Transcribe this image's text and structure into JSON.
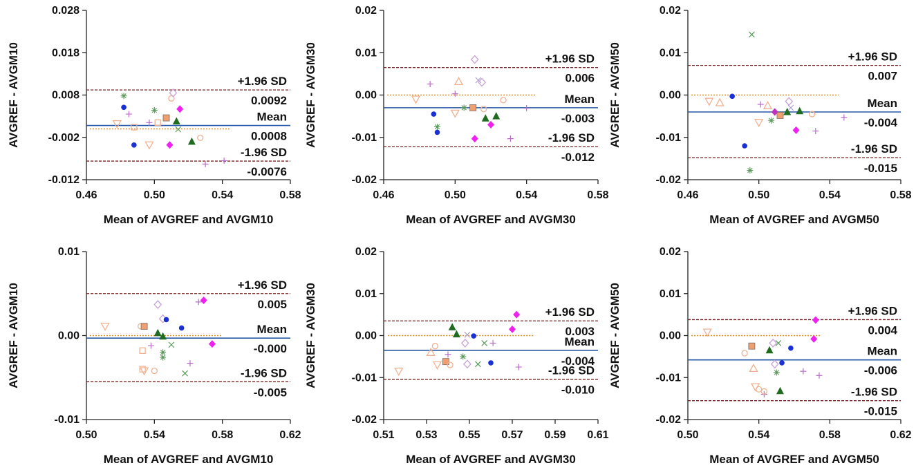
{
  "colors": {
    "mean_line": "#2457a8",
    "sd_line": "#7a2020",
    "zero_line": "#d98a18",
    "axis": "#222222"
  },
  "chart_data": [
    {
      "type": "scatter",
      "title": "",
      "xlabel": "Mean of AVGREF and AVGM10",
      "ylabel": "AVGREF - AVGM10",
      "xlim": [
        0.46,
        0.58
      ],
      "ylim": [
        -0.012,
        0.028
      ],
      "xticks": [
        0.46,
        0.5,
        0.54,
        0.58
      ],
      "yticks": [
        -0.012,
        -0.002,
        0.008,
        0.018,
        0.028
      ],
      "xtick_labels": [
        "0.46",
        "0.50",
        "0.54",
        "0.58"
      ],
      "ytick_labels": [
        "-0.012",
        "-0.002",
        "0.008",
        "0.018",
        "0.028"
      ],
      "mean": 0.0008,
      "upper": 0.0092,
      "lower": -0.0076,
      "zero_line_x": [
        0.462,
        0.545
      ],
      "mean_label": "Mean",
      "mean_value": "0.0008",
      "upper_label": "+1.96 SD",
      "upper_value": "0.0092",
      "lower_label": "-1.96 SD",
      "lower_value": "-0.0076",
      "points": [
        [
          0.482,
          0.0078,
          "star",
          "#5a9a5a"
        ],
        [
          0.482,
          0.0051,
          "circle",
          "#1a2fd4"
        ],
        [
          0.485,
          0.0035,
          "plus",
          "#b86cc8"
        ],
        [
          0.478,
          0.0012,
          "tri-down",
          "#f0b090"
        ],
        [
          0.488,
          0.0004,
          "square",
          "#f0b090"
        ],
        [
          0.488,
          -0.0038,
          "circle",
          "#1a2fd4"
        ],
        [
          0.497,
          -0.0038,
          "tri-down",
          "#f0b090"
        ],
        [
          0.497,
          0.0015,
          "plus",
          "#b86cc8"
        ],
        [
          0.5,
          0.0044,
          "star",
          "#5a9a5a"
        ],
        [
          0.502,
          0.0015,
          "square",
          "#f0b090"
        ],
        [
          0.507,
          0.0026,
          "square-filled",
          "#f0a070"
        ],
        [
          0.509,
          -0.0038,
          "diamond-filled",
          "#f020f0"
        ],
        [
          0.51,
          0.0072,
          "circle-open",
          "#f0b090"
        ],
        [
          0.511,
          0.0085,
          "diamond",
          "#c8a0d8"
        ],
        [
          0.513,
          0.0018,
          "tri-filled",
          "#1f6b1f"
        ],
        [
          0.515,
          0.0047,
          "diamond-filled",
          "#f020f0"
        ],
        [
          0.514,
          -0.0001,
          "x",
          "#5a9a5a"
        ],
        [
          0.522,
          -0.003,
          "tri-filled",
          "#1f6b1f"
        ],
        [
          0.527,
          -0.0021,
          "circle-open",
          "#f0b090"
        ],
        [
          0.53,
          -0.0083,
          "plus",
          "#b86cc8"
        ],
        [
          0.541,
          -0.0075,
          "plus",
          "#b86cc8"
        ]
      ]
    },
    {
      "type": "scatter",
      "title": "",
      "xlabel": "Mean of AVGREF and AVGM30",
      "ylabel": "AVGREF - AVGM30",
      "xlim": [
        0.46,
        0.58
      ],
      "ylim": [
        -0.02,
        0.02
      ],
      "xticks": [
        0.46,
        0.5,
        0.54,
        0.58
      ],
      "yticks": [
        -0.02,
        -0.01,
        0.0,
        0.01,
        0.02
      ],
      "xtick_labels": [
        "0.46",
        "0.50",
        "0.54",
        "0.58"
      ],
      "ytick_labels": [
        "-0.02",
        "-0.01",
        "0.00",
        "0.01",
        "0.02"
      ],
      "mean": -0.003,
      "upper": 0.0065,
      "lower": -0.0122,
      "zero_line_x": [
        0.462,
        0.545
      ],
      "mean_label": "Mean",
      "mean_value": "-0.003",
      "upper_label": "+1.96 SD",
      "upper_value": "0.006",
      "lower_label": "-1.96 SD",
      "lower_value": "-0.012",
      "points": [
        [
          0.478,
          -0.001,
          "tri-down",
          "#f0b090"
        ],
        [
          0.486,
          0.0026,
          "plus",
          "#b86cc8"
        ],
        [
          0.488,
          -0.0045,
          "circle",
          "#1a2fd4"
        ],
        [
          0.49,
          -0.0075,
          "star",
          "#5a9a5a"
        ],
        [
          0.49,
          -0.0088,
          "circle",
          "#1a2fd4"
        ],
        [
          0.5,
          0.0003,
          "plus",
          "#b86cc8"
        ],
        [
          0.502,
          0.0032,
          "tri-up",
          "#f0b090"
        ],
        [
          0.5,
          -0.0043,
          "tri-down",
          "#f0b090"
        ],
        [
          0.505,
          -0.003,
          "star",
          "#5a9a5a"
        ],
        [
          0.51,
          -0.003,
          "square-filled",
          "#f0a070"
        ],
        [
          0.511,
          0.0084,
          "diamond",
          "#c8a0d8"
        ],
        [
          0.511,
          -0.0103,
          "diamond-filled",
          "#f020f0"
        ],
        [
          0.513,
          0.0035,
          "x",
          "#b0a0c8"
        ],
        [
          0.515,
          0.003,
          "diamond",
          "#c8a0d8"
        ],
        [
          0.516,
          -0.0033,
          "circle-open",
          "#f0b090"
        ],
        [
          0.517,
          -0.0055,
          "tri-filled",
          "#1f6b1f"
        ],
        [
          0.52,
          -0.007,
          "diamond-filled",
          "#f020f0"
        ],
        [
          0.523,
          -0.005,
          "tri-filled",
          "#1f6b1f"
        ],
        [
          0.527,
          -0.0012,
          "circle-open",
          "#f0b090"
        ],
        [
          0.531,
          -0.0103,
          "plus",
          "#b86cc8"
        ],
        [
          0.54,
          -0.0031,
          "plus",
          "#b86cc8"
        ]
      ]
    },
    {
      "type": "scatter",
      "title": "",
      "xlabel": "Mean of AVGREF and AVGM50",
      "ylabel": "AVGREF - AVGM50",
      "xlim": [
        0.46,
        0.58
      ],
      "ylim": [
        -0.02,
        0.02
      ],
      "xticks": [
        0.46,
        0.5,
        0.54,
        0.58
      ],
      "yticks": [
        -0.02,
        -0.01,
        0.0,
        0.01,
        0.02
      ],
      "xtick_labels": [
        "0.46",
        "0.50",
        "0.54",
        "0.58"
      ],
      "ytick_labels": [
        "-0.02",
        "-0.01",
        "0.00",
        "0.01",
        "0.02"
      ],
      "mean": -0.004,
      "upper": 0.007,
      "lower": -0.0148,
      "zero_line_x": [
        0.462,
        0.545
      ],
      "mean_label": "Mean",
      "mean_value": "-0.004",
      "upper_label": "+1.96 SD",
      "upper_value": "0.007",
      "lower_label": "-1.96 SD",
      "lower_value": "-0.015",
      "points": [
        [
          0.472,
          -0.0015,
          "tri-down",
          "#f0b090"
        ],
        [
          0.478,
          -0.0018,
          "tri-up",
          "#f0b090"
        ],
        [
          0.485,
          -0.0003,
          "circle",
          "#1a2fd4"
        ],
        [
          0.492,
          -0.012,
          "circle",
          "#1a2fd4"
        ],
        [
          0.495,
          -0.0178,
          "star",
          "#5a9a5a"
        ],
        [
          0.496,
          0.0143,
          "x",
          "#5a9a5a"
        ],
        [
          0.5,
          -0.0065,
          "tri-down",
          "#f0b090"
        ],
        [
          0.501,
          -0.0022,
          "plus",
          "#b86cc8"
        ],
        [
          0.505,
          -0.0025,
          "tri-up",
          "#f0b090"
        ],
        [
          0.507,
          -0.006,
          "star",
          "#5a9a5a"
        ],
        [
          0.509,
          -0.004,
          "diamond-filled",
          "#c030c0"
        ],
        [
          0.512,
          -0.0048,
          "square-filled",
          "#f0a070"
        ],
        [
          0.516,
          -0.004,
          "tri-filled",
          "#1f6b1f"
        ],
        [
          0.517,
          -0.0015,
          "diamond",
          "#c8a0d8"
        ],
        [
          0.518,
          -0.003,
          "x",
          "#b0a0c8"
        ],
        [
          0.521,
          -0.0083,
          "diamond-filled",
          "#f020f0"
        ],
        [
          0.523,
          -0.0038,
          "tri-filled",
          "#1f6b1f"
        ],
        [
          0.53,
          -0.0045,
          "circle-open",
          "#f0b090"
        ],
        [
          0.532,
          -0.0085,
          "plus",
          "#b86cc8"
        ],
        [
          0.548,
          -0.0053,
          "plus",
          "#b86cc8"
        ]
      ]
    },
    {
      "type": "scatter",
      "title": "",
      "xlabel": "Mean of AVGREF and AVGM10",
      "ylabel": "AVGREF - AVGM10",
      "xlim": [
        0.5,
        0.62
      ],
      "ylim": [
        -0.01,
        0.01
      ],
      "xticks": [
        0.5,
        0.54,
        0.58,
        0.62
      ],
      "yticks": [
        -0.01,
        0.0,
        0.01
      ],
      "xtick_labels": [
        "0.50",
        "0.54",
        "0.58",
        "0.62"
      ],
      "ytick_labels": [
        "-0.01",
        "0.00",
        "0.01"
      ],
      "mean": -0.0003,
      "upper": 0.005,
      "lower": -0.0055,
      "zero_line_x": [
        0.502,
        0.58
      ],
      "mean_label": "Mean",
      "mean_value": "-0.000",
      "upper_label": "+1.96 SD",
      "upper_value": "0.005",
      "lower_label": "-1.96 SD",
      "lower_value": "-0.005",
      "points": [
        [
          0.511,
          0.0011,
          "tri-down",
          "#f0b090"
        ],
        [
          0.532,
          0.0011,
          "circle-open",
          "#f0b090"
        ],
        [
          0.533,
          -0.0018,
          "square",
          "#f0b090"
        ],
        [
          0.533,
          -0.004,
          "square",
          "#f0b090"
        ],
        [
          0.534,
          0.0011,
          "square-filled",
          "#f0a070"
        ],
        [
          0.534,
          -0.0042,
          "tri-down",
          "#f0b090"
        ],
        [
          0.538,
          -0.0012,
          "plus",
          "#b86cc8"
        ],
        [
          0.54,
          -0.0042,
          "circle-open",
          "#f0b090"
        ],
        [
          0.542,
          0.0037,
          "diamond",
          "#c8a0d8"
        ],
        [
          0.542,
          0.0003,
          "tri-filled",
          "#1f6b1f"
        ],
        [
          0.545,
          -0.0001,
          "tri-filled",
          "#1f6b1f"
        ],
        [
          0.545,
          -0.002,
          "star",
          "#5a9a5a"
        ],
        [
          0.545,
          -0.0026,
          "star",
          "#5a9a5a"
        ],
        [
          0.545,
          0.002,
          "diamond",
          "#c8a0d8"
        ],
        [
          0.547,
          0.0019,
          "circle",
          "#1a2fd4"
        ],
        [
          0.55,
          -0.0011,
          "x",
          "#5a9a5a"
        ],
        [
          0.556,
          0.0009,
          "circle",
          "#1a2fd4"
        ],
        [
          0.558,
          -0.0045,
          "x",
          "#5a9a5a"
        ],
        [
          0.561,
          -0.0033,
          "plus",
          "#b86cc8"
        ],
        [
          0.566,
          0.004,
          "plus",
          "#b86cc8"
        ],
        [
          0.569,
          0.0042,
          "diamond-filled",
          "#f020f0"
        ],
        [
          0.574,
          -0.001,
          "diamond-filled",
          "#f020f0"
        ]
      ]
    },
    {
      "type": "scatter",
      "title": "",
      "xlabel": "Mean of AVGREF and AVGM30",
      "ylabel": "AVGREF - AVGM30",
      "xlim": [
        0.51,
        0.61
      ],
      "ylim": [
        -0.02,
        0.02
      ],
      "xticks": [
        0.51,
        0.53,
        0.55,
        0.57,
        0.59,
        0.61
      ],
      "yticks": [
        -0.02,
        -0.01,
        0.0,
        0.01,
        0.02
      ],
      "xtick_labels": [
        "0.51",
        "0.53",
        "0.55",
        "0.57",
        "0.59",
        "0.61"
      ],
      "ytick_labels": [
        "-0.02",
        "-0.01",
        "0.00",
        "0.01",
        "0.02"
      ],
      "mean": -0.0035,
      "upper": 0.0035,
      "lower": -0.0104,
      "zero_line_x": [
        0.512,
        0.58
      ],
      "mean_label": "Mean",
      "mean_value": "-0.004",
      "upper_label": "+1.96 SD",
      "upper_value": "0.003",
      "lower_label": "-1.96 SD",
      "lower_value": "-0.010",
      "points": [
        [
          0.517,
          -0.0085,
          "tri-down",
          "#f0b090"
        ],
        [
          0.532,
          -0.004,
          "tri-up",
          "#f0b090"
        ],
        [
          0.534,
          -0.0025,
          "circle-open",
          "#f0b090"
        ],
        [
          0.535,
          -0.007,
          "tri-down",
          "#f0b090"
        ],
        [
          0.539,
          -0.0062,
          "square-filled",
          "#f0a070"
        ],
        [
          0.54,
          -0.0045,
          "plus",
          "#b86cc8"
        ],
        [
          0.541,
          -0.007,
          "circle-open",
          "#f0b090"
        ],
        [
          0.542,
          0.002,
          "tri-filled",
          "#1f6b1f"
        ],
        [
          0.544,
          0.0003,
          "tri-filled",
          "#1f6b1f"
        ],
        [
          0.547,
          -0.005,
          "star",
          "#5a9a5a"
        ],
        [
          0.548,
          -0.0018,
          "diamond",
          "#c8a0d8"
        ],
        [
          0.549,
          -0.0068,
          "diamond",
          "#c8a0d8"
        ],
        [
          0.549,
          0.0002,
          "x",
          "#b0a0c8"
        ],
        [
          0.552,
          -0.0001,
          "circle",
          "#1a2fd4"
        ],
        [
          0.554,
          -0.0068,
          "x",
          "#5a9a5a"
        ],
        [
          0.557,
          -0.0018,
          "x",
          "#5a9a5a"
        ],
        [
          0.56,
          -0.0065,
          "circle",
          "#1a2fd4"
        ],
        [
          0.561,
          -0.0018,
          "plus",
          "#b86cc8"
        ],
        [
          0.57,
          0.0015,
          "diamond-filled",
          "#f020f0"
        ],
        [
          0.572,
          0.005,
          "diamond-filled",
          "#f020f0"
        ],
        [
          0.573,
          -0.0075,
          "plus",
          "#b86cc8"
        ]
      ]
    },
    {
      "type": "scatter",
      "title": "",
      "xlabel": "Mean of AVGREF and AVGM50",
      "ylabel": "AVGREF - AVGM50",
      "xlim": [
        0.5,
        0.62
      ],
      "ylim": [
        -0.02,
        0.02
      ],
      "xticks": [
        0.5,
        0.54,
        0.58,
        0.62
      ],
      "yticks": [
        -0.02,
        -0.01,
        0.0,
        0.01,
        0.02
      ],
      "xtick_labels": [
        "0.50",
        "0.54",
        "0.58",
        "0.62"
      ],
      "ytick_labels": [
        "-0.02",
        "-0.01",
        "0.00",
        "0.01",
        "0.02"
      ],
      "mean": -0.0058,
      "upper": 0.0038,
      "lower": -0.0155,
      "zero_line_x": [
        0.502,
        0.575
      ],
      "mean_label": "Mean",
      "mean_value": "-0.006",
      "upper_label": "+1.96 SD",
      "upper_value": "0.004",
      "lower_label": "-1.96 SD",
      "lower_value": "-0.015",
      "points": [
        [
          0.511,
          0.0008,
          "tri-down",
          "#f0b090"
        ],
        [
          0.532,
          -0.0042,
          "circle-open",
          "#f0b090"
        ],
        [
          0.536,
          -0.0025,
          "square-filled",
          "#f0a070"
        ],
        [
          0.537,
          -0.0078,
          "tri-up",
          "#f0b090"
        ],
        [
          0.538,
          -0.0122,
          "tri-down",
          "#f0b090"
        ],
        [
          0.54,
          -0.0128,
          "circle-open",
          "#f0b090"
        ],
        [
          0.543,
          -0.014,
          "plus",
          "#b86cc8"
        ],
        [
          0.543,
          -0.0133,
          "circle-open",
          "#f0b090"
        ],
        [
          0.546,
          -0.0035,
          "tri-filled",
          "#1f6b1f"
        ],
        [
          0.548,
          -0.0018,
          "diamond",
          "#c8a0d8"
        ],
        [
          0.549,
          -0.0068,
          "diamond",
          "#c8a0d8"
        ],
        [
          0.55,
          -0.0088,
          "star",
          "#5a9a5a"
        ],
        [
          0.551,
          -0.0018,
          "x",
          "#5a9a5a"
        ],
        [
          0.552,
          -0.0132,
          "tri-filled",
          "#1f6b1f"
        ],
        [
          0.553,
          -0.0065,
          "circle",
          "#1a2fd4"
        ],
        [
          0.558,
          -0.003,
          "circle",
          "#1a2fd4"
        ],
        [
          0.565,
          -0.0085,
          "plus",
          "#b86cc8"
        ],
        [
          0.571,
          -0.0008,
          "diamond-filled",
          "#f020f0"
        ],
        [
          0.572,
          0.0037,
          "diamond-filled",
          "#f020f0"
        ],
        [
          0.574,
          -0.0095,
          "plus",
          "#b86cc8"
        ]
      ]
    }
  ]
}
